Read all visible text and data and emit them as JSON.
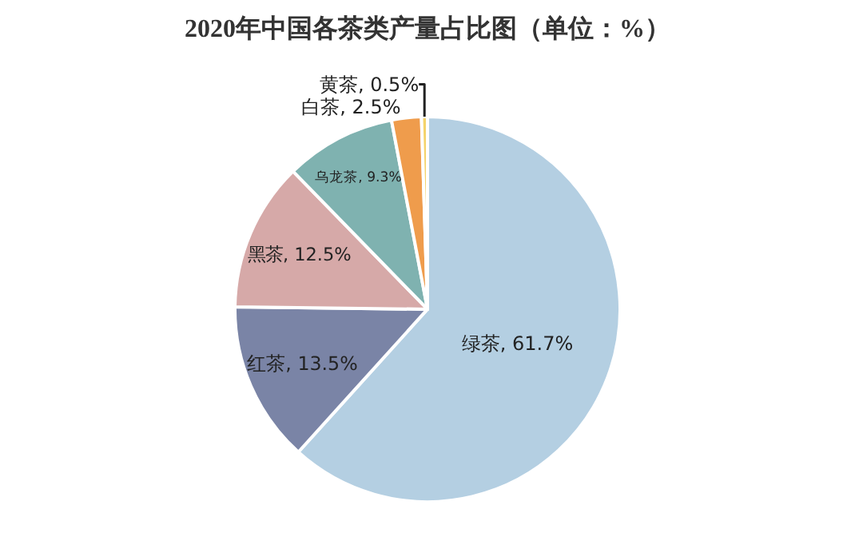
{
  "chart_data": {
    "type": "pie",
    "title": "2020年中国各茶类产量占比图（单位：%）",
    "categories": [
      "绿茶",
      "红茶",
      "黑茶",
      "乌龙茶",
      "白茶",
      "黄茶"
    ],
    "values": [
      61.7,
      13.5,
      12.5,
      9.3,
      2.5,
      0.5
    ],
    "colors": [
      "#b4cfe2",
      "#7a84a6",
      "#d6a9a8",
      "#7fb2b0",
      "#ef9c4c",
      "#f4d36a"
    ],
    "value_labels": [
      "61.7%",
      "13.5%",
      "12.5%",
      "9.3%",
      "2.5%",
      "0.5%"
    ],
    "data_labels": true,
    "legend": false
  }
}
